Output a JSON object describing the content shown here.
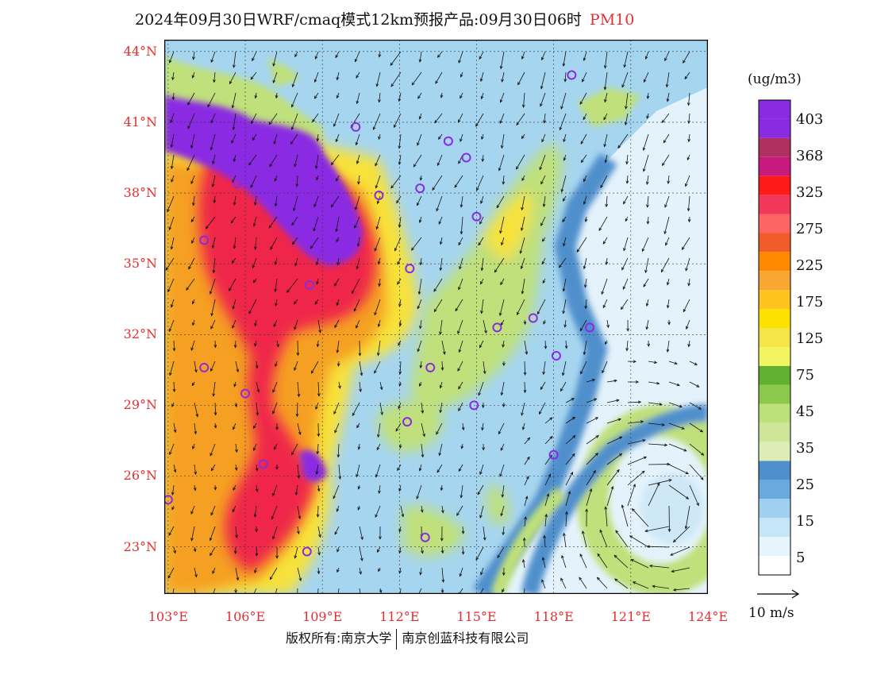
{
  "title": {
    "main": "2024年09月30日WRF/cmaq模式12km预报产品:09月30日06时",
    "variable": "PM10"
  },
  "map": {
    "lat_labels": [
      "44°N",
      "41°N",
      "38°N",
      "35°N",
      "32°N",
      "29°N",
      "26°N",
      "23°N"
    ],
    "lat_values": [
      44,
      41,
      38,
      35,
      32,
      29,
      26,
      23
    ],
    "lon_labels": [
      "103°E",
      "106°E",
      "109°E",
      "112°E",
      "115°E",
      "118°E",
      "121°E",
      "124°E"
    ],
    "lon_values": [
      103,
      106,
      109,
      112,
      115,
      118,
      121,
      124
    ],
    "extent": {
      "lon_min": 102.85,
      "lon_max": 124,
      "lat_min": 21.0,
      "lat_max": 44.5
    },
    "field_colors": {
      "land_low": "#a6d5f0",
      "ocean": "#e4f3fb",
      "coast_band": "#4f8fcc",
      "grass": "#bfe07a",
      "yellow": "#f7e23a",
      "orange": "#f5a021",
      "red": "#ef2848",
      "purple": "#8a2be2"
    },
    "stations_color": "#8a2be2",
    "stations": [
      {
        "lon": 118.7,
        "lat": 43.0
      },
      {
        "lon": 110.3,
        "lat": 40.8
      },
      {
        "lon": 113.9,
        "lat": 40.2
      },
      {
        "lon": 114.6,
        "lat": 39.5
      },
      {
        "lon": 105.7,
        "lat": 38.4
      },
      {
        "lon": 111.2,
        "lat": 37.9
      },
      {
        "lon": 112.8,
        "lat": 38.2
      },
      {
        "lon": 115.0,
        "lat": 37.0
      },
      {
        "lon": 104.4,
        "lat": 36.0
      },
      {
        "lon": 112.4,
        "lat": 34.8
      },
      {
        "lon": 108.5,
        "lat": 34.1
      },
      {
        "lon": 117.2,
        "lat": 32.7
      },
      {
        "lon": 115.8,
        "lat": 32.3
      },
      {
        "lon": 119.4,
        "lat": 32.3
      },
      {
        "lon": 104.4,
        "lat": 30.6
      },
      {
        "lon": 113.2,
        "lat": 30.6
      },
      {
        "lon": 118.1,
        "lat": 31.1
      },
      {
        "lon": 106.0,
        "lat": 29.5
      },
      {
        "lon": 114.9,
        "lat": 29.0
      },
      {
        "lon": 112.3,
        "lat": 28.3
      },
      {
        "lon": 118.0,
        "lat": 26.9
      },
      {
        "lon": 106.7,
        "lat": 26.5
      },
      {
        "lon": 103.0,
        "lat": 25.0
      },
      {
        "lon": 113.0,
        "lat": 23.4
      },
      {
        "lon": 108.4,
        "lat": 22.8
      }
    ]
  },
  "colorbar": {
    "unit": "(ug/m3)",
    "colors": [
      "#8a2be2",
      "#8a2be2",
      "#b03060",
      "#c8197e",
      "#ff1a1a",
      "#f2385a",
      "#ff6464",
      "#f25b2a",
      "#ff8a00",
      "#f9a632",
      "#ffc21e",
      "#fde200",
      "#f6e547",
      "#f2f561",
      "#62b030",
      "#8cc84b",
      "#bce07a",
      "#cfe69a",
      "#dcedb8",
      "#4f8fcc",
      "#6aa9de",
      "#9fd0f0",
      "#c4e6f7",
      "#e6f4fb",
      "#ffffff"
    ],
    "labels": [
      "403",
      "368",
      "325",
      "275",
      "225",
      "175",
      "125",
      "75",
      "45",
      "35",
      "25",
      "15",
      "5"
    ]
  },
  "wind_reference": {
    "label": "10 m/s"
  },
  "copyright": {
    "left": "版权所有:南京大学",
    "right": "南京创蓝科技有限公司"
  }
}
